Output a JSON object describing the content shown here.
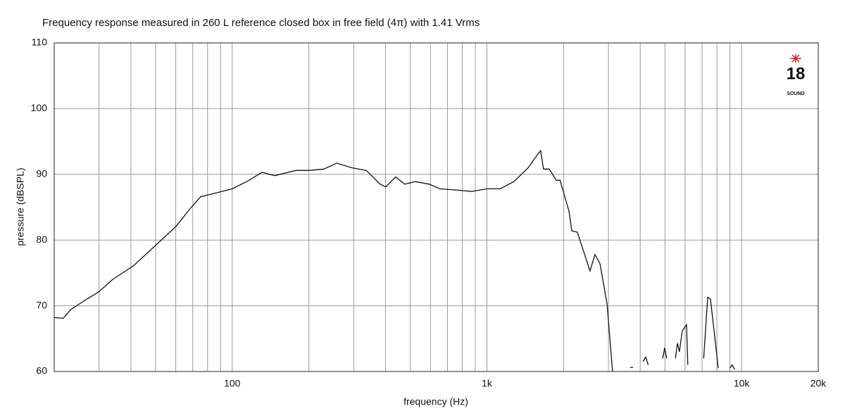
{
  "chart_data": {
    "type": "line",
    "title": "Frequency response measured in 260 L reference closed box in free field (4π) with 1.41 Vrms",
    "xlabel": "frequency (Hz)",
    "ylabel": "pressure (dBSPL)",
    "log_x": true,
    "grid": true,
    "color": "#111111",
    "xlim": [
      20,
      20000
    ],
    "ylim": [
      60,
      110
    ],
    "xticks": [
      100,
      {
        "value": 1000,
        "label": "1k"
      },
      {
        "value": 10000,
        "label": "10k"
      },
      {
        "value": 20000,
        "label": "20k"
      }
    ],
    "xgrid": [
      30,
      40,
      50,
      60,
      70,
      80,
      90,
      100,
      200,
      300,
      400,
      500,
      600,
      700,
      800,
      900,
      1000,
      2000,
      3000,
      4000,
      5000,
      6000,
      7000,
      8000,
      9000,
      10000
    ],
    "yticks": [
      60,
      70,
      80,
      90,
      100,
      110
    ],
    "logo": {
      "number": "18",
      "text": "SOUND"
    },
    "x": [
      20,
      21.7,
      23.2,
      26.3,
      29.9,
      33.9,
      41,
      49.7,
      60.2,
      68.4,
      75.2,
      82.8,
      100,
      114,
      131,
      147,
      178,
      202,
      229,
      257,
      295,
      336,
      381,
      401,
      438,
      476,
      523,
      594,
      654,
      767,
      871,
      1000,
      1128,
      1277,
      1452,
      1566,
      1626,
      1668,
      1757,
      1872,
      1937,
      2100,
      2155,
      2265,
      2540,
      2657,
      2780,
      2963,
      3114,
      3400,
      3654,
      3750,
      3900,
      4100,
      4200,
      4300,
      4500,
      4900,
      4990,
      5080,
      5300,
      5500,
      5600,
      5700,
      5850,
      6080,
      6150,
      6700,
      7100,
      7360,
      7550,
      8100,
      8600,
      9000,
      9180,
      9400
    ],
    "values": [
      68.2,
      68.1,
      69.4,
      70.8,
      72.1,
      74.0,
      76.1,
      79.1,
      82.1,
      84.8,
      86.6,
      87.0,
      87.8,
      88.9,
      90.3,
      89.8,
      90.6,
      90.6,
      90.8,
      91.7,
      91.0,
      90.6,
      88.5,
      88.1,
      89.6,
      88.5,
      88.9,
      88.5,
      87.8,
      87.6,
      87.4,
      87.8,
      87.8,
      88.9,
      91.0,
      92.8,
      93.6,
      90.8,
      90.8,
      89.1,
      89.1,
      84.4,
      81.4,
      81.2,
      75.3,
      77.8,
      76.4,
      70.3,
      60.0,
      null,
      60.6,
      60.6,
      null,
      61.5,
      62.2,
      61.0,
      null,
      62.0,
      63.6,
      62.0,
      null,
      62.0,
      64.3,
      63.0,
      66.2,
      67.1,
      61.0,
      null,
      62.0,
      71.3,
      71.0,
      60.5,
      null,
      60.5,
      61.0,
      60.3
    ]
  }
}
